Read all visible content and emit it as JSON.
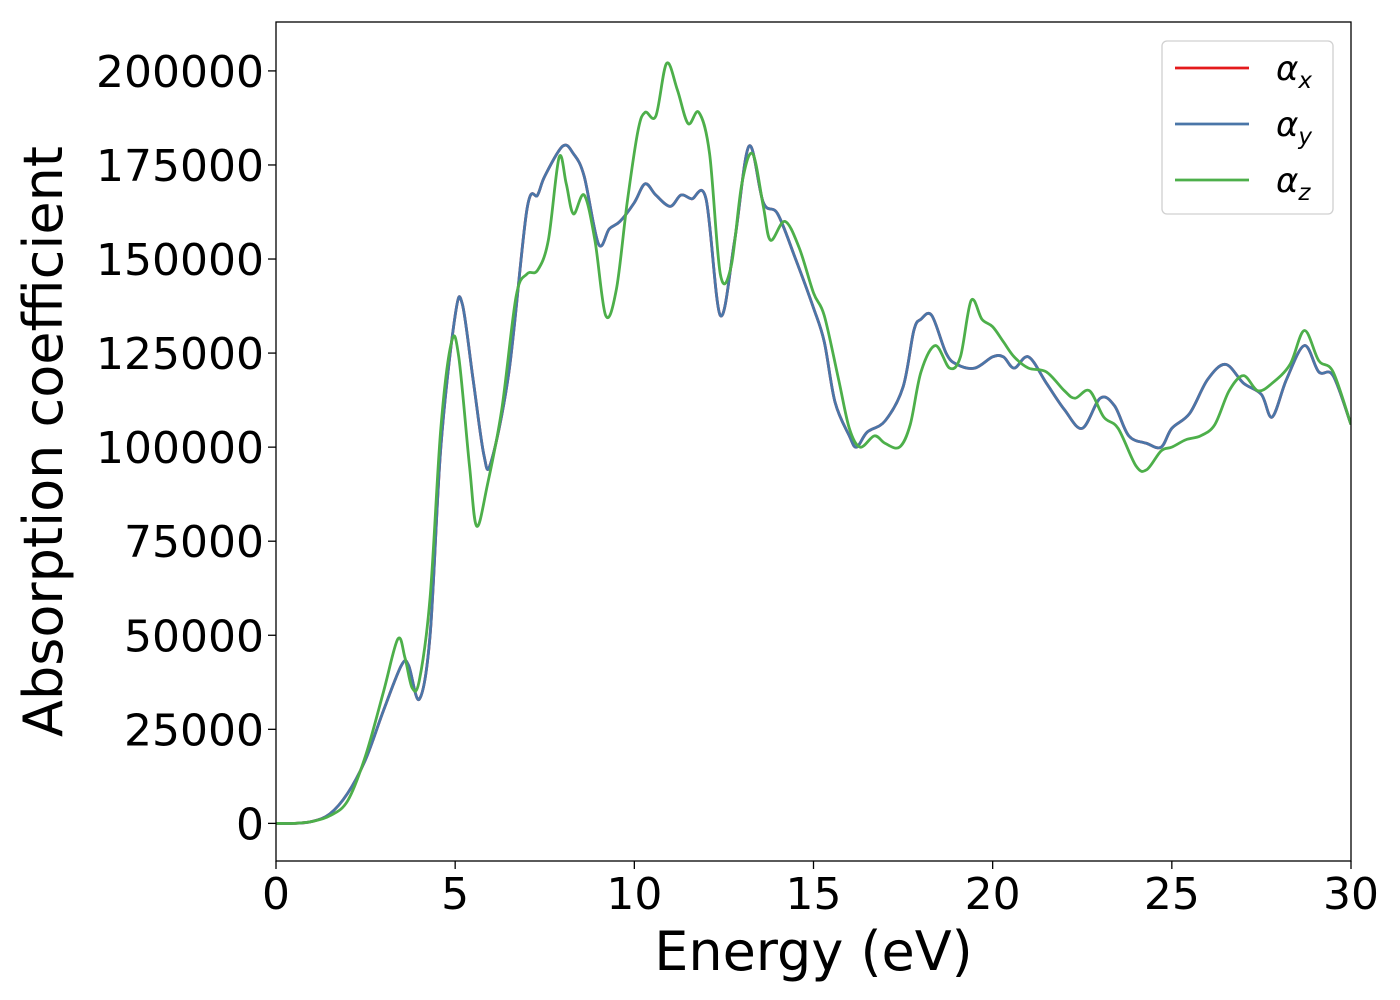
{
  "chart_data": {
    "type": "line",
    "xlabel": "Energy (eV)",
    "ylabel": "Absorption coefficient",
    "xlim": [
      0,
      30
    ],
    "ylim": [
      -10000,
      213000
    ],
    "xticks": [
      0,
      5,
      10,
      15,
      20,
      25,
      30
    ],
    "yticks": [
      0,
      25000,
      50000,
      75000,
      100000,
      125000,
      150000,
      175000,
      200000
    ],
    "grid": false,
    "legend": {
      "placement": "top-right"
    },
    "series": [
      {
        "name": "α",
        "subscript": "x",
        "color": "#e41a1c",
        "points": [
          [
            0,
            0
          ],
          [
            0.5,
            0
          ],
          [
            1,
            500
          ],
          [
            1.5,
            2500
          ],
          [
            2,
            8000
          ],
          [
            2.5,
            17000
          ],
          [
            3,
            30000
          ],
          [
            3.5,
            42000
          ],
          [
            3.7,
            42000
          ],
          [
            4,
            33000
          ],
          [
            4.3,
            50000
          ],
          [
            4.6,
            100000
          ],
          [
            5,
            135000
          ],
          [
            5.2,
            138000
          ],
          [
            5.5,
            118000
          ],
          [
            5.8,
            98000
          ],
          [
            6,
            96000
          ],
          [
            6.5,
            120000
          ],
          [
            7,
            163000
          ],
          [
            7.3,
            167000
          ],
          [
            7.5,
            172000
          ],
          [
            8,
            180000
          ],
          [
            8.3,
            178000
          ],
          [
            8.6,
            172000
          ],
          [
            9,
            154000
          ],
          [
            9.3,
            158000
          ],
          [
            9.6,
            160000
          ],
          [
            10,
            165000
          ],
          [
            10.3,
            170000
          ],
          [
            10.6,
            167000
          ],
          [
            11,
            164000
          ],
          [
            11.3,
            167000
          ],
          [
            11.6,
            166000
          ],
          [
            12,
            166000
          ],
          [
            12.4,
            135000
          ],
          [
            12.8,
            155000
          ],
          [
            13.2,
            180000
          ],
          [
            13.6,
            165000
          ],
          [
            14,
            162000
          ],
          [
            14.5,
            150000
          ],
          [
            15,
            137000
          ],
          [
            15.3,
            128000
          ],
          [
            15.6,
            112000
          ],
          [
            16,
            103000
          ],
          [
            16.2,
            100000
          ],
          [
            16.5,
            104000
          ],
          [
            17,
            107000
          ],
          [
            17.5,
            116000
          ],
          [
            17.8,
            131000
          ],
          [
            18,
            134000
          ],
          [
            18.3,
            135000
          ],
          [
            18.7,
            125000
          ],
          [
            19,
            122000
          ],
          [
            19.5,
            121000
          ],
          [
            20,
            124000
          ],
          [
            20.3,
            124000
          ],
          [
            20.6,
            121000
          ],
          [
            21,
            124000
          ],
          [
            21.5,
            117000
          ],
          [
            22,
            110000
          ],
          [
            22.5,
            105000
          ],
          [
            23,
            113000
          ],
          [
            23.4,
            111000
          ],
          [
            23.8,
            103000
          ],
          [
            24.3,
            101000
          ],
          [
            24.7,
            100000
          ],
          [
            25,
            105000
          ],
          [
            25.5,
            109000
          ],
          [
            26,
            118000
          ],
          [
            26.5,
            122000
          ],
          [
            27,
            117000
          ],
          [
            27.5,
            114000
          ],
          [
            27.8,
            108000
          ],
          [
            28.2,
            118000
          ],
          [
            28.7,
            127000
          ],
          [
            29.1,
            120000
          ],
          [
            29.5,
            119000
          ],
          [
            30,
            106000
          ]
        ]
      },
      {
        "name": "α",
        "subscript": "y",
        "color": "#4a76a8",
        "points": [
          [
            0,
            0
          ],
          [
            0.5,
            0
          ],
          [
            1,
            500
          ],
          [
            1.5,
            2500
          ],
          [
            2,
            8000
          ],
          [
            2.5,
            17000
          ],
          [
            3,
            30000
          ],
          [
            3.5,
            42000
          ],
          [
            3.7,
            42000
          ],
          [
            4,
            33000
          ],
          [
            4.3,
            50000
          ],
          [
            4.6,
            100000
          ],
          [
            5,
            135000
          ],
          [
            5.2,
            138000
          ],
          [
            5.5,
            118000
          ],
          [
            5.8,
            98000
          ],
          [
            6,
            96000
          ],
          [
            6.5,
            120000
          ],
          [
            7,
            163000
          ],
          [
            7.3,
            167000
          ],
          [
            7.5,
            172000
          ],
          [
            8,
            180000
          ],
          [
            8.3,
            178000
          ],
          [
            8.6,
            172000
          ],
          [
            9,
            154000
          ],
          [
            9.3,
            158000
          ],
          [
            9.6,
            160000
          ],
          [
            10,
            165000
          ],
          [
            10.3,
            170000
          ],
          [
            10.6,
            167000
          ],
          [
            11,
            164000
          ],
          [
            11.3,
            167000
          ],
          [
            11.6,
            166000
          ],
          [
            12,
            166000
          ],
          [
            12.4,
            135000
          ],
          [
            12.8,
            155000
          ],
          [
            13.2,
            180000
          ],
          [
            13.6,
            165000
          ],
          [
            14,
            162000
          ],
          [
            14.5,
            150000
          ],
          [
            15,
            137000
          ],
          [
            15.3,
            128000
          ],
          [
            15.6,
            112000
          ],
          [
            16,
            103000
          ],
          [
            16.2,
            100000
          ],
          [
            16.5,
            104000
          ],
          [
            17,
            107000
          ],
          [
            17.5,
            116000
          ],
          [
            17.8,
            131000
          ],
          [
            18,
            134000
          ],
          [
            18.3,
            135000
          ],
          [
            18.7,
            125000
          ],
          [
            19,
            122000
          ],
          [
            19.5,
            121000
          ],
          [
            20,
            124000
          ],
          [
            20.3,
            124000
          ],
          [
            20.6,
            121000
          ],
          [
            21,
            124000
          ],
          [
            21.5,
            117000
          ],
          [
            22,
            110000
          ],
          [
            22.5,
            105000
          ],
          [
            23,
            113000
          ],
          [
            23.4,
            111000
          ],
          [
            23.8,
            103000
          ],
          [
            24.3,
            101000
          ],
          [
            24.7,
            100000
          ],
          [
            25,
            105000
          ],
          [
            25.5,
            109000
          ],
          [
            26,
            118000
          ],
          [
            26.5,
            122000
          ],
          [
            27,
            117000
          ],
          [
            27.5,
            114000
          ],
          [
            27.8,
            108000
          ],
          [
            28.2,
            118000
          ],
          [
            28.7,
            127000
          ],
          [
            29.1,
            120000
          ],
          [
            29.5,
            119000
          ],
          [
            30,
            106000
          ]
        ]
      },
      {
        "name": "α",
        "subscript": "z",
        "color": "#4daf4a",
        "points": [
          [
            0,
            0
          ],
          [
            0.5,
            0
          ],
          [
            1,
            500
          ],
          [
            1.5,
            2000
          ],
          [
            2,
            6000
          ],
          [
            2.5,
            18000
          ],
          [
            3,
            35000
          ],
          [
            3.4,
            49000
          ],
          [
            3.6,
            44000
          ],
          [
            3.8,
            36000
          ],
          [
            4,
            38000
          ],
          [
            4.3,
            60000
          ],
          [
            4.6,
            105000
          ],
          [
            4.9,
            128000
          ],
          [
            5.1,
            124000
          ],
          [
            5.4,
            95000
          ],
          [
            5.6,
            79000
          ],
          [
            5.9,
            90000
          ],
          [
            6.3,
            110000
          ],
          [
            6.7,
            140000
          ],
          [
            7,
            146000
          ],
          [
            7.3,
            147000
          ],
          [
            7.6,
            155000
          ],
          [
            7.9,
            177000
          ],
          [
            8.1,
            170000
          ],
          [
            8.3,
            162000
          ],
          [
            8.6,
            167000
          ],
          [
            8.9,
            155000
          ],
          [
            9.2,
            135000
          ],
          [
            9.5,
            142000
          ],
          [
            9.8,
            165000
          ],
          [
            10.1,
            184000
          ],
          [
            10.3,
            189000
          ],
          [
            10.6,
            188000
          ],
          [
            10.9,
            202000
          ],
          [
            11.2,
            195000
          ],
          [
            11.5,
            186000
          ],
          [
            11.8,
            189000
          ],
          [
            12.1,
            178000
          ],
          [
            12.4,
            146000
          ],
          [
            12.7,
            148000
          ],
          [
            13,
            170000
          ],
          [
            13.3,
            178000
          ],
          [
            13.6,
            164000
          ],
          [
            13.8,
            155000
          ],
          [
            14.2,
            160000
          ],
          [
            14.6,
            153000
          ],
          [
            15,
            141000
          ],
          [
            15.3,
            135000
          ],
          [
            15.7,
            118000
          ],
          [
            16,
            105000
          ],
          [
            16.3,
            100000
          ],
          [
            16.7,
            103000
          ],
          [
            17,
            101000
          ],
          [
            17.4,
            100000
          ],
          [
            17.7,
            106000
          ],
          [
            18,
            120000
          ],
          [
            18.4,
            127000
          ],
          [
            18.8,
            121000
          ],
          [
            19.1,
            124000
          ],
          [
            19.4,
            139000
          ],
          [
            19.7,
            134000
          ],
          [
            20,
            132000
          ],
          [
            20.3,
            128000
          ],
          [
            20.6,
            124000
          ],
          [
            21,
            121000
          ],
          [
            21.5,
            120000
          ],
          [
            22,
            115000
          ],
          [
            22.3,
            113000
          ],
          [
            22.7,
            115000
          ],
          [
            23.1,
            108000
          ],
          [
            23.5,
            105000
          ],
          [
            24,
            95000
          ],
          [
            24.3,
            94000
          ],
          [
            24.7,
            99000
          ],
          [
            25,
            100000
          ],
          [
            25.4,
            102000
          ],
          [
            25.8,
            103000
          ],
          [
            26.2,
            106000
          ],
          [
            26.6,
            115000
          ],
          [
            27,
            119000
          ],
          [
            27.4,
            115000
          ],
          [
            27.8,
            117000
          ],
          [
            28.3,
            122000
          ],
          [
            28.7,
            131000
          ],
          [
            29.1,
            123000
          ],
          [
            29.5,
            120000
          ],
          [
            30,
            106000
          ]
        ]
      }
    ]
  }
}
